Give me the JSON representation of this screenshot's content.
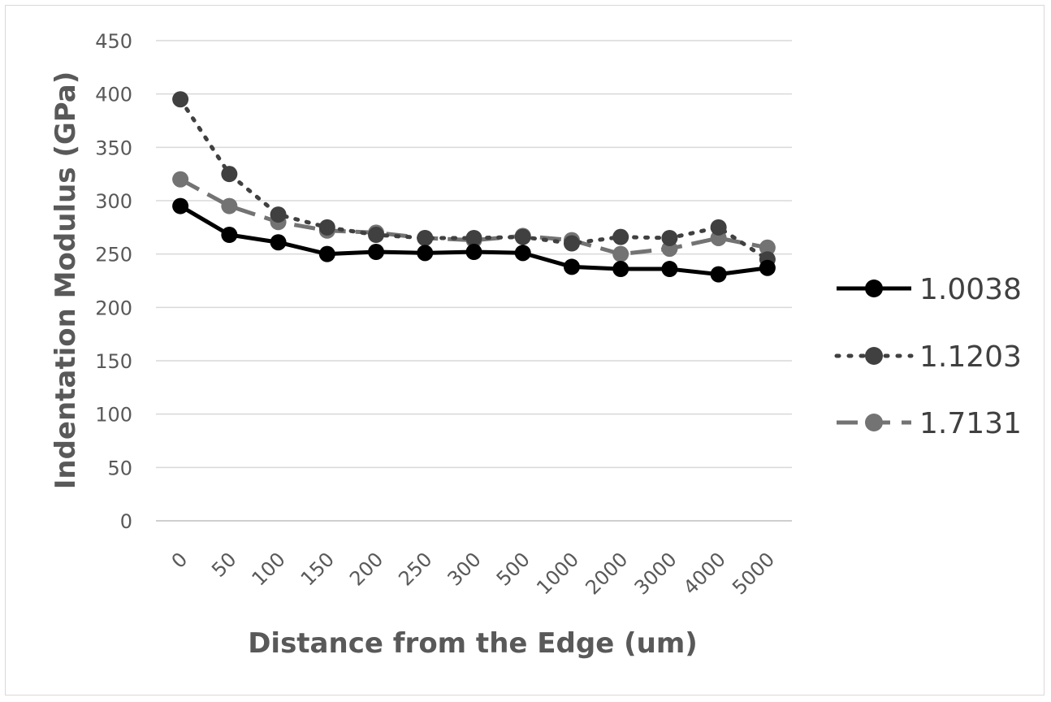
{
  "chart_data": {
    "type": "line",
    "title": "",
    "xlabel": "Distance from the Edge (um)",
    "ylabel": "Indentation Modulus (GPa)",
    "categories": [
      "0",
      "50",
      "100",
      "150",
      "200",
      "250",
      "300",
      "500",
      "1000",
      "2000",
      "3000",
      "4000",
      "5000"
    ],
    "ylim": [
      0,
      450
    ],
    "yticks": [
      0,
      50,
      100,
      150,
      200,
      250,
      300,
      350,
      400,
      450
    ],
    "grid": true,
    "legend_position": "right",
    "series": [
      {
        "name": "1.0038",
        "values": [
          295,
          268,
          261,
          250,
          252,
          251,
          252,
          251,
          238,
          236,
          236,
          231,
          237
        ],
        "color": "#000000",
        "line_style": "solid"
      },
      {
        "name": "1.1203",
        "values": [
          395,
          325,
          287,
          275,
          268,
          265,
          265,
          266,
          260,
          266,
          265,
          275,
          245
        ],
        "color": "#404040",
        "line_style": "dotted"
      },
      {
        "name": "1.7131",
        "values": [
          320,
          295,
          280,
          272,
          270,
          265,
          263,
          267,
          263,
          250,
          255,
          265,
          256
        ],
        "color": "#737373",
        "line_style": "dashed"
      }
    ]
  }
}
